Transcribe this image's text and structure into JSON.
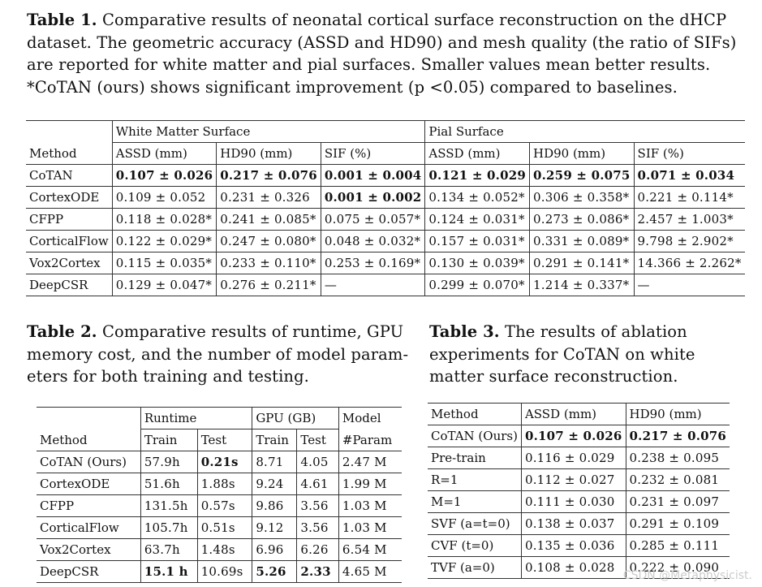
{
  "table1": {
    "caption_label": "Table 1.",
    "caption_text": [
      "Comparative results of neonatal cortical surface reconstruction on the dHCP",
      "dataset. The geometric accuracy (ASSD and HD90) and mesh quality (the ratio of SIFs)",
      "are reported for white matter and pial surfaces. Smaller values mean better results.",
      "*CoTAN (ours) shows significant improvement (p <0.05) compared to baselines."
    ],
    "group_headers": [
      "White Matter Surface",
      "Pial Surface"
    ],
    "method_header": "Method",
    "col_headers": [
      "ASSD (mm)",
      "HD90 (mm)",
      "SIF (%)",
      "ASSD (mm)",
      "HD90 (mm)",
      "SIF (%)"
    ],
    "rows": [
      {
        "method": "CoTAN",
        "cells": [
          "0.107 ± 0.026",
          "0.217 ± 0.076",
          "0.001 ± 0.004",
          "0.121 ± 0.029",
          "0.259 ± 0.075",
          "0.071 ± 0.034"
        ],
        "bold": [
          true,
          true,
          true,
          true,
          true,
          true
        ]
      },
      {
        "method": "CortexODE",
        "cells": [
          "0.109 ± 0.052",
          "0.231 ± 0.326",
          "0.001 ± 0.002",
          "0.134 ± 0.052*",
          "0.306 ± 0.358*",
          "0.221 ± 0.114*"
        ],
        "bold": [
          false,
          false,
          true,
          false,
          false,
          false
        ]
      },
      {
        "method": "CFPP",
        "cells": [
          "0.118 ± 0.028*",
          "0.241 ± 0.085*",
          "0.075 ± 0.057*",
          "0.124 ± 0.031*",
          "0.273 ± 0.086*",
          "2.457 ± 1.003*"
        ],
        "bold": [
          false,
          false,
          false,
          false,
          false,
          false
        ]
      },
      {
        "method": "CorticalFlow",
        "cells": [
          "0.122 ± 0.029*",
          "0.247 ± 0.080*",
          "0.048 ± 0.032*",
          "0.157 ± 0.031*",
          "0.331 ± 0.089*",
          "9.798 ± 2.902*"
        ],
        "bold": [
          false,
          false,
          false,
          false,
          false,
          false
        ]
      },
      {
        "method": "Vox2Cortex",
        "cells": [
          "0.115 ± 0.035*",
          "0.233 ± 0.110*",
          "0.253 ± 0.169*",
          "0.130 ± 0.039*",
          "0.291 ± 0.141*",
          "14.366 ± 2.262*"
        ],
        "bold": [
          false,
          false,
          false,
          false,
          false,
          false
        ]
      },
      {
        "method": "DeepCSR",
        "cells": [
          "0.129 ± 0.047*",
          "0.276 ± 0.211*",
          "—",
          "0.299 ± 0.070*",
          "1.214 ± 0.337*",
          "—"
        ],
        "bold": [
          false,
          false,
          false,
          false,
          false,
          false
        ]
      }
    ]
  },
  "table2": {
    "caption_label": "Table 2.",
    "caption_text": [
      "Comparative results of runtime, GPU",
      "memory cost, and the number of model param-",
      "eters for both training and testing."
    ],
    "group_headers": [
      "Runtime",
      "GPU (GB)",
      "Model"
    ],
    "method_header": "Method",
    "col_headers": [
      "Train",
      "Test",
      "Train",
      "Test",
      "#Param"
    ],
    "rows": [
      {
        "method": "CoTAN (Ours)",
        "cells": [
          "57.9h",
          "0.21s",
          "8.71",
          "4.05",
          "2.47 M"
        ],
        "bold": [
          false,
          true,
          false,
          false,
          false
        ]
      },
      {
        "method": "CortexODE",
        "cells": [
          "51.6h",
          "1.88s",
          "9.24",
          "4.61",
          "1.99 M"
        ],
        "bold": [
          false,
          false,
          false,
          false,
          false
        ]
      },
      {
        "method": "CFPP",
        "cells": [
          "131.5h",
          "0.57s",
          "9.86",
          "3.56",
          "1.03 M"
        ],
        "bold": [
          false,
          false,
          false,
          false,
          false
        ]
      },
      {
        "method": "CorticalFlow",
        "cells": [
          "105.7h",
          "0.51s",
          "9.12",
          "3.56",
          "1.03 M"
        ],
        "bold": [
          false,
          false,
          false,
          false,
          false
        ]
      },
      {
        "method": "Vox2Cortex",
        "cells": [
          "63.7h",
          "1.48s",
          "6.96",
          "6.26",
          "6.54 M"
        ],
        "bold": [
          false,
          false,
          false,
          false,
          false
        ]
      },
      {
        "method": "DeepCSR",
        "cells": [
          "15.1 h",
          "10.69s",
          "5.26",
          "2.33",
          "4.65 M"
        ],
        "bold": [
          true,
          false,
          true,
          true,
          false
        ]
      }
    ]
  },
  "table3": {
    "caption_label": "Table 3.",
    "caption_text": [
      "The results of ablation",
      "experiments for CoTAN on white",
      "matter surface reconstruction."
    ],
    "col_headers": [
      "Method",
      "ASSD (mm)",
      "HD90 (mm)"
    ],
    "rows": [
      {
        "method": "CoTAN (Ours)",
        "cells": [
          "0.107 ± 0.026",
          "0.217 ± 0.076"
        ],
        "bold": [
          true,
          true
        ]
      },
      {
        "method": "Pre-train",
        "cells": [
          "0.116 ± 0.029",
          "0.238 ± 0.095"
        ],
        "bold": [
          false,
          false
        ]
      },
      {
        "method": "R=1",
        "cells": [
          "0.112 ± 0.027",
          "0.232 ± 0.081"
        ],
        "bold": [
          false,
          false
        ]
      },
      {
        "method": "M=1",
        "cells": [
          "0.111 ± 0.030",
          "0.231 ± 0.097"
        ],
        "bold": [
          false,
          false
        ]
      },
      {
        "method": "SVF (a=t=0)",
        "cells": [
          "0.138 ± 0.037",
          "0.291 ± 0.109"
        ],
        "bold": [
          false,
          false
        ]
      },
      {
        "method": "CVF (t=0)",
        "cells": [
          "0.135 ± 0.036",
          "0.285 ± 0.111"
        ],
        "bold": [
          false,
          false
        ]
      },
      {
        "method": "TVF (a=0)",
        "cells": [
          "0.108 ± 0.028",
          "0.222 ± 0.090"
        ],
        "bold": [
          false,
          false
        ]
      }
    ]
  },
  "watermark": "CSDN @Metaphysicist."
}
